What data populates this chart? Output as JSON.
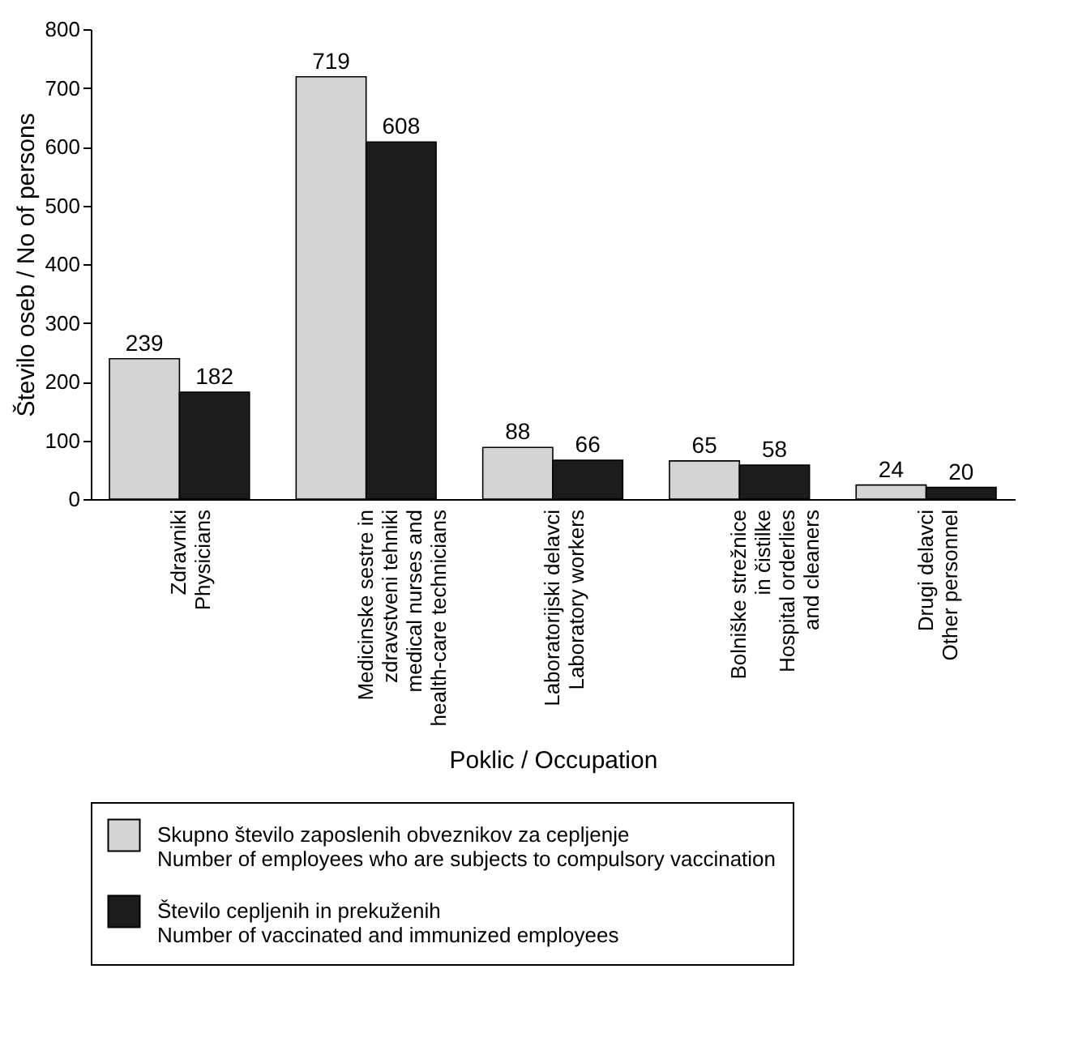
{
  "chart_data": {
    "type": "bar",
    "xlabel": "Poklic / Occupation",
    "ylabel": "Število oseb / No of persons",
    "categories": [
      "Zdravniki\nPhysicians",
      "Medicinske sestre in\nzdravstveni tehniki\nmedical nurses and\nhealth-care technicians",
      "Laboratorijski delavci\nLaboratory workers",
      "Bolniške strežnice\nin čistilke\nHospital orderlies\nand cleaners",
      "Drugi delavci\nOther personnel"
    ],
    "series": [
      {
        "name": "Skupno število zaposlenih obveznikov za cepljenje\nNumber of employees who are subjects to compulsory vaccination",
        "color": "#d4d4d4",
        "values": [
          239,
          719,
          88,
          65,
          24
        ]
      },
      {
        "name": "Število cepljenih in prekuženih\nNumber of vaccinated and immunized employees",
        "color": "#1c1c1c",
        "values": [
          182,
          608,
          66,
          58,
          20
        ]
      }
    ],
    "ylim": [
      0,
      800
    ],
    "yticks": [
      0,
      100,
      200,
      300,
      400,
      500,
      600,
      700,
      800
    ],
    "grid": false,
    "legend": "bottom",
    "data_labels": true
  }
}
